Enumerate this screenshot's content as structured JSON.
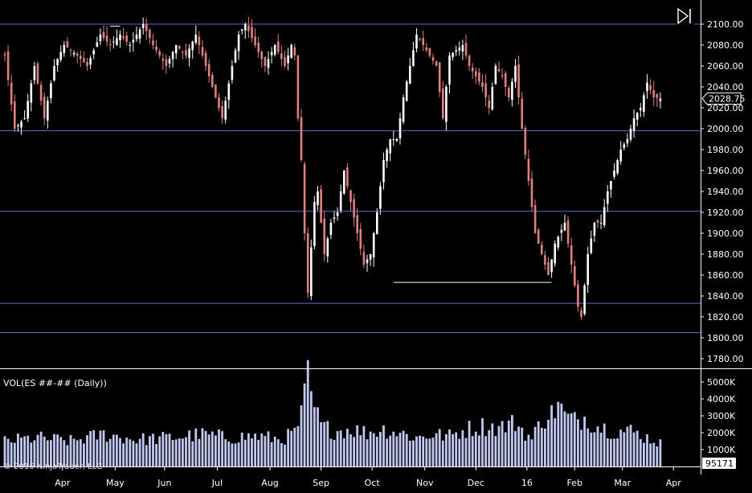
{
  "chart_data": {
    "type": "candlestick",
    "price_panel": {
      "ylim": [
        1770,
        2110
      ],
      "y_ticks": [
        "1780.00",
        "1800.00",
        "1820.00",
        "1840.00",
        "1860.00",
        "1880.00",
        "1900.00",
        "1920.00",
        "1940.00",
        "1960.00",
        "1980.00",
        "2000.00",
        "2020.00",
        "2040.00",
        "2060.00",
        "2080.00",
        "2100.00"
      ],
      "horizontal_lines": [
        2100,
        1998,
        1921,
        1833,
        1805
      ],
      "annotation_segments": [
        {
          "from_index": 118,
          "to_index": 166,
          "value": 1853
        },
        {
          "from_index": 32,
          "to_index": 35,
          "value": 2098
        }
      ],
      "last_price_label": "2028.75",
      "last_price": 2028.75
    },
    "volume_panel": {
      "label": "VOL(ES ##-## (Daily))",
      "ylim": [
        0,
        6000
      ],
      "y_ticks": [
        "1000K",
        "2000K",
        "3000K",
        "4000K",
        "5000K"
      ],
      "last_volume_label": "95171",
      "last_volume": 95171
    },
    "x_labels": [
      "Apr",
      "May",
      "Jun",
      "Jul",
      "Aug",
      "Sep",
      "Oct",
      "Nov",
      "Dec",
      "16",
      "Feb",
      "Mar",
      "Apr"
    ],
    "x_label_positions": [
      17.5,
      33.5,
      48.5,
      64.5,
      80.5,
      96,
      111.5,
      127.5,
      143,
      158.5,
      173,
      187.5,
      203
    ],
    "keypoints": [
      [
        0,
        2070
      ],
      [
        3,
        2000
      ],
      [
        6,
        2010
      ],
      [
        9,
        2060
      ],
      [
        12,
        2010
      ],
      [
        15,
        2060
      ],
      [
        18,
        2080
      ],
      [
        22,
        2070
      ],
      [
        25,
        2060
      ],
      [
        29,
        2090
      ],
      [
        32,
        2080
      ],
      [
        35,
        2090
      ],
      [
        38,
        2080
      ],
      [
        42,
        2100
      ],
      [
        45,
        2080
      ],
      [
        49,
        2060
      ],
      [
        52,
        2080
      ],
      [
        55,
        2070
      ],
      [
        58,
        2090
      ],
      [
        61,
        2060
      ],
      [
        63,
        2040
      ],
      [
        66,
        2010
      ],
      [
        69,
        2060
      ],
      [
        71,
        2090
      ],
      [
        73,
        2100
      ],
      [
        76,
        2080
      ],
      [
        79,
        2060
      ],
      [
        82,
        2080
      ],
      [
        85,
        2060
      ],
      [
        87,
        2080
      ],
      [
        88,
        2070
      ],
      [
        89,
        2010
      ],
      [
        90,
        1970
      ],
      [
        91,
        1900
      ],
      [
        92,
        1843
      ],
      [
        94,
        1930
      ],
      [
        95,
        1940
      ],
      [
        97,
        1880
      ],
      [
        99,
        1910
      ],
      [
        101,
        1920
      ],
      [
        103,
        1960
      ],
      [
        105,
        1930
      ],
      [
        107,
        1900
      ],
      [
        109,
        1870
      ],
      [
        111,
        1880
      ],
      [
        113,
        1920
      ],
      [
        115,
        1970
      ],
      [
        117,
        1990
      ],
      [
        119,
        1990
      ],
      [
        121,
        2030
      ],
      [
        123,
        2060
      ],
      [
        125,
        2090
      ],
      [
        127,
        2080
      ],
      [
        129,
        2070
      ],
      [
        131,
        2060
      ],
      [
        133,
        2010
      ],
      [
        135,
        2070
      ],
      [
        137,
        2075
      ],
      [
        139,
        2080
      ],
      [
        141,
        2060
      ],
      [
        143,
        2050
      ],
      [
        145,
        2040
      ],
      [
        147,
        2020
      ],
      [
        149,
        2060
      ],
      [
        151,
        2050
      ],
      [
        153,
        2030
      ],
      [
        155,
        2060
      ],
      [
        157,
        2000
      ],
      [
        159,
        1950
      ],
      [
        161,
        1900
      ],
      [
        163,
        1880
      ],
      [
        165,
        1860
      ],
      [
        167,
        1890
      ],
      [
        170,
        1910
      ],
      [
        172,
        1870
      ],
      [
        174,
        1830
      ],
      [
        175,
        1820
      ],
      [
        177,
        1880
      ],
      [
        179,
        1910
      ],
      [
        181,
        1910
      ],
      [
        183,
        1940
      ],
      [
        185,
        1960
      ],
      [
        187,
        1980
      ],
      [
        189,
        1990
      ],
      [
        191,
        2010
      ],
      [
        193,
        2020
      ],
      [
        195,
        2044
      ],
      [
        197,
        2030
      ],
      [
        199,
        2028.75
      ]
    ],
    "volume_keypoints": [
      [
        0,
        1500
      ],
      [
        10,
        1700
      ],
      [
        20,
        1500
      ],
      [
        30,
        1900
      ],
      [
        40,
        1600
      ],
      [
        50,
        1700
      ],
      [
        60,
        1900
      ],
      [
        68,
        1700
      ],
      [
        76,
        1800
      ],
      [
        84,
        1600
      ],
      [
        88,
        2000
      ],
      [
        90,
        3000
      ],
      [
        91,
        4200
      ],
      [
        92,
        5300
      ],
      [
        93,
        4000
      ],
      [
        96,
        2400
      ],
      [
        100,
        2100
      ],
      [
        105,
        2200
      ],
      [
        110,
        2000
      ],
      [
        115,
        2200
      ],
      [
        120,
        2000
      ],
      [
        125,
        1700
      ],
      [
        130,
        1900
      ],
      [
        135,
        1800
      ],
      [
        140,
        2200
      ],
      [
        145,
        2400
      ],
      [
        150,
        2300
      ],
      [
        155,
        2600
      ],
      [
        158,
        2000
      ],
      [
        160,
        1600
      ],
      [
        163,
        2800
      ],
      [
        166,
        3100
      ],
      [
        168,
        3700
      ],
      [
        170,
        3000
      ],
      [
        173,
        2700
      ],
      [
        176,
        2900
      ],
      [
        180,
        2400
      ],
      [
        185,
        2100
      ],
      [
        190,
        2100
      ],
      [
        195,
        1700
      ],
      [
        199,
        1400
      ]
    ],
    "n_bars": 200,
    "current_bar_index": 199,
    "colors": {
      "background": "#000000",
      "up_candle": "#ffffff",
      "down_candle": "#e08080",
      "grid_line": "#5a6ad8",
      "volume_bar": "#c0c8f0",
      "annotation": "#ffffff",
      "axis_line": "#ffffff",
      "price_tag_bg": "#ffffff",
      "price_tag_text": "#000000"
    }
  },
  "copyright": "© 2016 NinjaTrader, LLC",
  "icons": {
    "scroll_to_end": "skip-to-end-icon"
  }
}
